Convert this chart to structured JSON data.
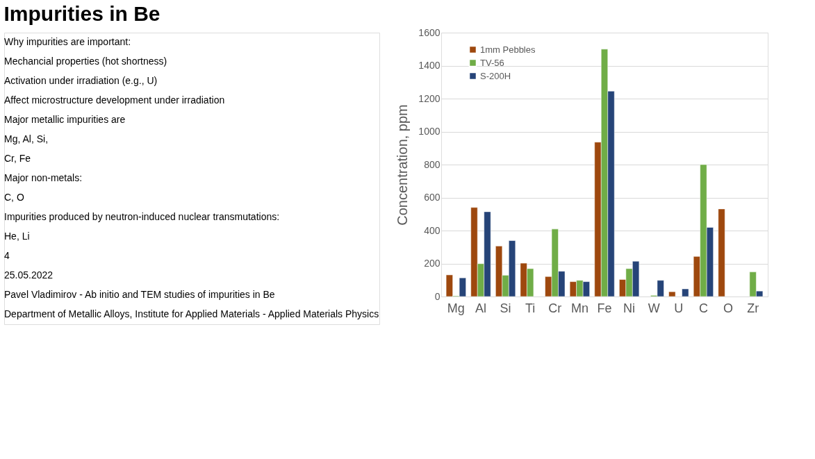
{
  "chart_data": {
    "type": "bar",
    "title": "Impurities in Be",
    "ylabel": "Concentration, ppm",
    "categories": [
      "Mg",
      "Al",
      "Si",
      "Ti",
      "Cr",
      "Mn",
      "Fe",
      "Ni",
      "W",
      "U",
      "C",
      "O",
      "Zr"
    ],
    "series": [
      {
        "name": "1mm Pebbles",
        "color": "#9e480e",
        "values": [
          131,
          540,
          306,
          202,
          121,
          90,
          936,
          103,
          null,
          29,
          243,
          531,
          null
        ]
      },
      {
        "name": "TV-56",
        "color": "#70ad47",
        "values": [
          4,
          199,
          129,
          169,
          409,
          98,
          1500,
          169,
          7,
          null,
          800,
          null,
          149
        ]
      },
      {
        "name": "S-200H",
        "color": "#264478",
        "values": [
          113,
          514,
          339,
          null,
          153,
          90,
          1245,
          214,
          98,
          46,
          419,
          null,
          33
        ]
      }
    ],
    "ylim": [
      0,
      1600
    ],
    "yticks": [
      0,
      200,
      400,
      600,
      800,
      1000,
      1200,
      1400,
      1600
    ],
    "grid": "y",
    "legend": "top left",
    "annotations": [
      "Why impurities are important:",
      "Mechancial properties (hot shortness)",
      "Activation under irradiation (e.g., U)",
      "Affect microstructure development under irradiation",
      "Major metallic impurities are",
      "Mg, Al, Si,",
      "Cr, Fe",
      "Major non-metals:",
      "C, O",
      "Impurities produced by neutron-induced nuclear transmutations:",
      "He, Li",
      "4",
      "25.05.2022",
      "Pavel Vladimirov - Ab initio and TEM studies of impurities in Be",
      "Department of Metallic Alloys, Institute for Applied Materials - Applied Materials Physics"
    ]
  }
}
